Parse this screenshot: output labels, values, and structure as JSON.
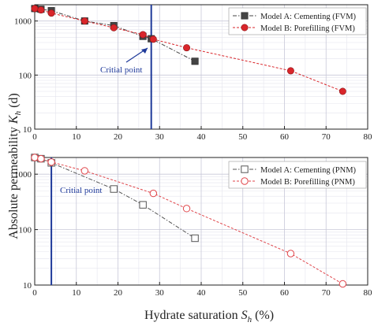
{
  "chart_data": [
    {
      "type": "line",
      "panel": "top",
      "y_scale": "log",
      "xlim": [
        0,
        80
      ],
      "ylim": [
        10,
        2000
      ],
      "x_ticks": [
        "0",
        "10",
        "20",
        "30",
        "40",
        "50",
        "60",
        "70",
        "80"
      ],
      "y_ticks": [
        "10",
        "100",
        "1000"
      ],
      "grid": true,
      "legend_position": "top-right",
      "series": [
        {
          "name": "Model A: Cementing (FVM)",
          "marker": "filled-square",
          "color": "#444444",
          "x": [
            0,
            1.5,
            4,
            12,
            19,
            26,
            28,
            38.5
          ],
          "y": [
            1700,
            1650,
            1550,
            1000,
            820,
            520,
            470,
            180
          ]
        },
        {
          "name": "Model B: Porefilling (FVM)",
          "marker": "filled-circle",
          "color": "#d9262b",
          "x": [
            0,
            1.5,
            4,
            12,
            19,
            26,
            28.5,
            36.5,
            61.5,
            74
          ],
          "y": [
            1700,
            1600,
            1400,
            1000,
            750,
            560,
            460,
            320,
            120,
            50
          ]
        }
      ],
      "annotations": [
        {
          "text": "Critial point",
          "vline_x": 28
        }
      ]
    },
    {
      "type": "line",
      "panel": "bottom",
      "y_scale": "log",
      "xlim": [
        0,
        80
      ],
      "ylim": [
        10,
        2000
      ],
      "x_ticks": [
        "0",
        "10",
        "20",
        "30",
        "40",
        "50",
        "60",
        "70",
        "80"
      ],
      "y_ticks": [
        "10",
        "100",
        "1000"
      ],
      "grid": true,
      "legend_position": "top-right",
      "series": [
        {
          "name": "Model A: Cementing (PNM)",
          "marker": "open-square",
          "color": "#555555",
          "x": [
            0,
            1.5,
            4,
            19,
            26,
            38.5
          ],
          "y": [
            2000,
            1900,
            1600,
            540,
            280,
            70
          ]
        },
        {
          "name": "Model B: Porefilling (PNM)",
          "marker": "open-circle",
          "color": "#e0454a",
          "x": [
            0,
            1.5,
            4,
            12,
            28.5,
            36.5,
            61.5,
            74
          ],
          "y": [
            2000,
            1900,
            1650,
            1150,
            450,
            240,
            37,
            10.5
          ]
        }
      ],
      "annotations": [
        {
          "text": "Critial point",
          "vline_x": 4
        }
      ]
    }
  ],
  "shared": {
    "y_axis_label_prefix": "Absolute permeability",
    "y_axis_label_var": "K",
    "y_axis_label_sub": "h",
    "y_axis_label_suffix": " (d)",
    "x_axis_label_prefix": "Hydrate saturation ",
    "x_axis_label_var": "S",
    "x_axis_label_sub": "h",
    "x_axis_label_suffix": " (%)",
    "vline_color": "#1f3a9a"
  }
}
